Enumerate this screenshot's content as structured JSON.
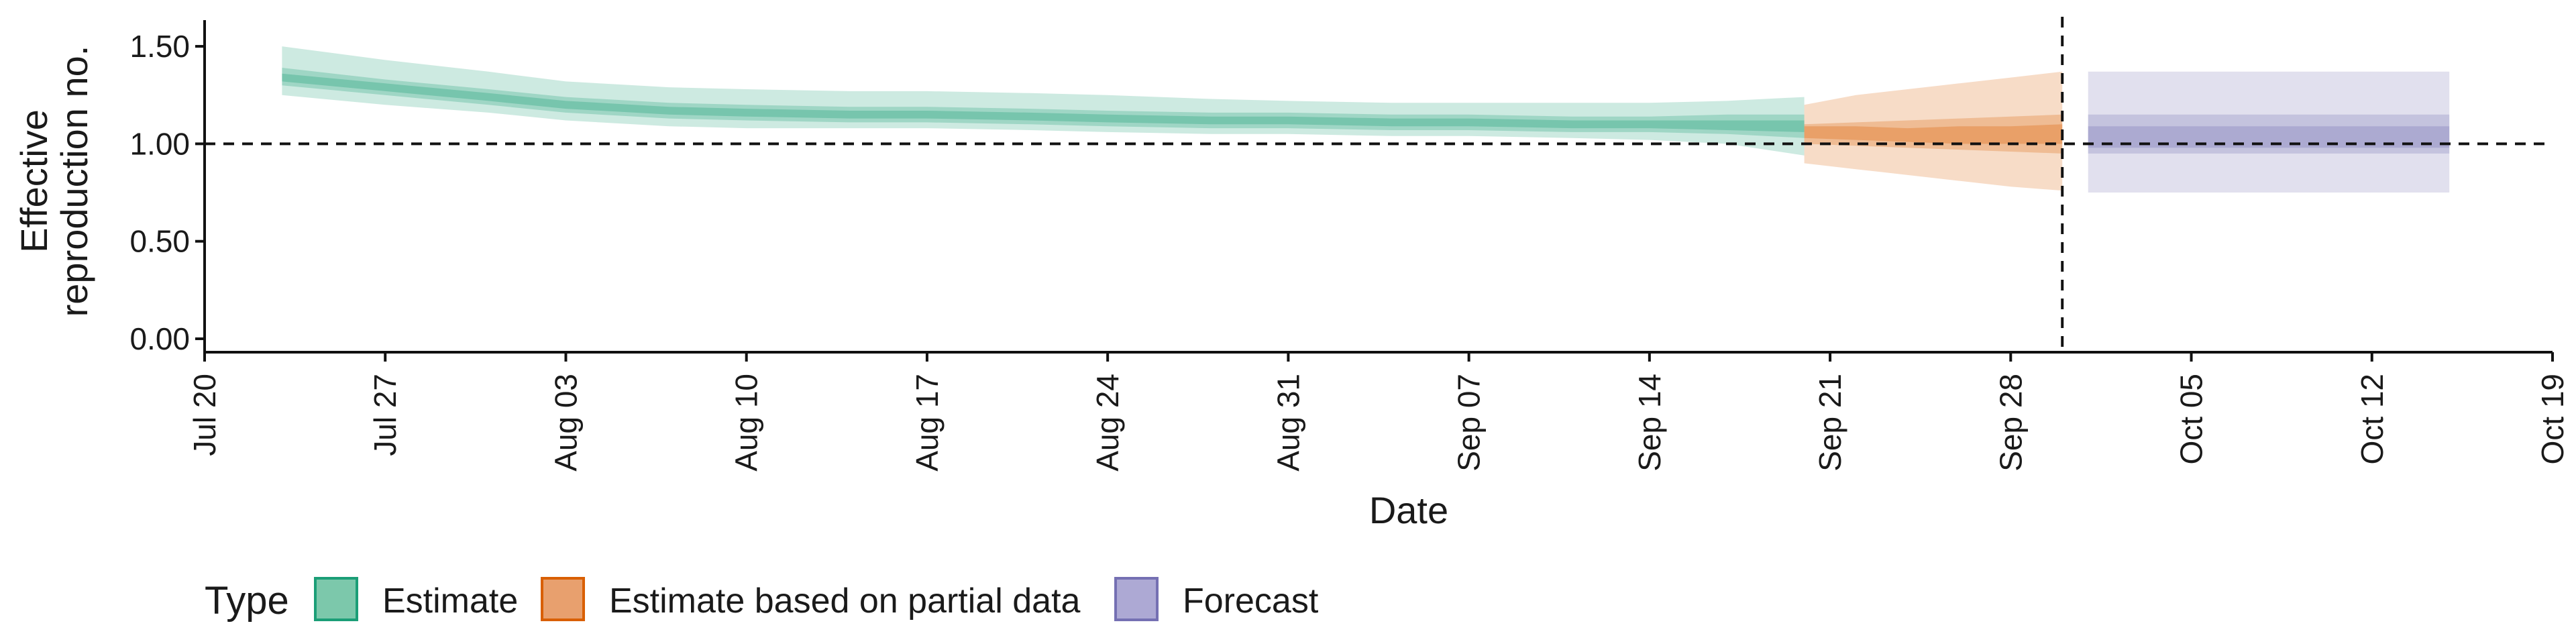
{
  "chart_data": {
    "type": "area",
    "xlabel": "Date",
    "ylabel_lines": [
      "Effective",
      "reproduction no."
    ],
    "ylim": [
      0,
      1.6
    ],
    "yticks": [
      0.0,
      0.5,
      1.0,
      1.5
    ],
    "ytick_labels": [
      "0.00",
      "0.50",
      "1.00",
      "1.50"
    ],
    "xlim": [
      "2020-07-20",
      "2020-10-19"
    ],
    "xticks": [
      "2020-07-20",
      "2020-07-27",
      "2020-08-03",
      "2020-08-10",
      "2020-08-17",
      "2020-08-24",
      "2020-08-31",
      "2020-09-07",
      "2020-09-14",
      "2020-09-21",
      "2020-09-28",
      "2020-10-05",
      "2020-10-12",
      "2020-10-19"
    ],
    "xtick_labels": [
      "Jul 20",
      "Jul 27",
      "Aug 03",
      "Aug 10",
      "Aug 17",
      "Aug 24",
      "Aug 31",
      "Sep 07",
      "Sep 14",
      "Sep 21",
      "Sep 28",
      "Oct 05",
      "Oct 12",
      "Oct 19"
    ],
    "reference_hline": 1.0,
    "reference_vline": "2020-09-30",
    "grid": false,
    "legend": {
      "title": "Type",
      "position": "bottom-left",
      "entries": [
        {
          "label": "Estimate",
          "fill": "#7cc8ab",
          "stroke": "#1b9e77"
        },
        {
          "label": "Estimate based on partial data",
          "fill": "#e8a06e",
          "stroke": "#d95f02"
        },
        {
          "label": "Forecast",
          "fill": "#ada9d4",
          "stroke": "#7570b3"
        }
      ]
    },
    "series": [
      {
        "name": "Estimate",
        "color": "#1b9e77",
        "dates": [
          "2020-07-23",
          "2020-07-27",
          "2020-07-31",
          "2020-08-03",
          "2020-08-07",
          "2020-08-10",
          "2020-08-14",
          "2020-08-17",
          "2020-08-21",
          "2020-08-24",
          "2020-08-28",
          "2020-08-31",
          "2020-09-04",
          "2020-09-07",
          "2020-09-11",
          "2020-09-14",
          "2020-09-17",
          "2020-09-20"
        ],
        "median": [
          1.34,
          1.29,
          1.24,
          1.2,
          1.17,
          1.16,
          1.15,
          1.15,
          1.14,
          1.13,
          1.12,
          1.12,
          1.11,
          1.11,
          1.1,
          1.1,
          1.1,
          1.09
        ],
        "lower_20": [
          1.32,
          1.27,
          1.22,
          1.18,
          1.15,
          1.14,
          1.13,
          1.13,
          1.12,
          1.11,
          1.1,
          1.1,
          1.09,
          1.09,
          1.08,
          1.08,
          1.07,
          1.06
        ],
        "upper_20": [
          1.36,
          1.31,
          1.26,
          1.22,
          1.19,
          1.18,
          1.17,
          1.17,
          1.16,
          1.15,
          1.14,
          1.14,
          1.13,
          1.13,
          1.12,
          1.12,
          1.12,
          1.12
        ],
        "lower_50": [
          1.3,
          1.25,
          1.2,
          1.16,
          1.13,
          1.12,
          1.11,
          1.11,
          1.1,
          1.09,
          1.08,
          1.08,
          1.07,
          1.07,
          1.06,
          1.06,
          1.05,
          1.03
        ],
        "upper_50": [
          1.39,
          1.33,
          1.28,
          1.24,
          1.21,
          1.2,
          1.19,
          1.19,
          1.18,
          1.17,
          1.16,
          1.16,
          1.15,
          1.15,
          1.14,
          1.14,
          1.15,
          1.15
        ],
        "lower_90": [
          1.25,
          1.2,
          1.16,
          1.12,
          1.09,
          1.08,
          1.08,
          1.08,
          1.07,
          1.06,
          1.05,
          1.05,
          1.04,
          1.04,
          1.03,
          1.02,
          1.0,
          0.94
        ],
        "upper_90": [
          1.5,
          1.43,
          1.37,
          1.32,
          1.29,
          1.28,
          1.27,
          1.27,
          1.26,
          1.25,
          1.23,
          1.22,
          1.21,
          1.21,
          1.21,
          1.21,
          1.22,
          1.24
        ]
      },
      {
        "name": "Estimate based on partial data",
        "color": "#d95f02",
        "dates": [
          "2020-09-20",
          "2020-09-22",
          "2020-09-24",
          "2020-09-26",
          "2020-09-28",
          "2020-09-30"
        ],
        "median": [
          1.06,
          1.06,
          1.05,
          1.05,
          1.05,
          1.06
        ],
        "lower_20": [
          1.03,
          1.02,
          1.01,
          1.0,
          1.0,
          1.0
        ],
        "upper_20": [
          1.09,
          1.09,
          1.08,
          1.09,
          1.09,
          1.1
        ],
        "lower_50": [
          1.0,
          0.99,
          0.98,
          0.97,
          0.96,
          0.95
        ],
        "upper_50": [
          1.1,
          1.11,
          1.12,
          1.13,
          1.14,
          1.15
        ],
        "lower_90": [
          0.9,
          0.87,
          0.84,
          0.81,
          0.78,
          0.76
        ],
        "upper_90": [
          1.2,
          1.25,
          1.28,
          1.31,
          1.34,
          1.37
        ]
      },
      {
        "name": "Forecast",
        "color": "#7570b3",
        "dates": [
          "2020-10-01",
          "2020-10-15"
        ],
        "median": [
          1.05,
          1.05
        ],
        "lower_20": [
          0.98,
          0.98
        ],
        "upper_20": [
          1.09,
          1.09
        ],
        "lower_50": [
          0.95,
          0.95
        ],
        "upper_50": [
          1.15,
          1.15
        ],
        "lower_90": [
          0.75,
          0.75
        ],
        "upper_90": [
          1.37,
          1.37
        ]
      }
    ]
  }
}
